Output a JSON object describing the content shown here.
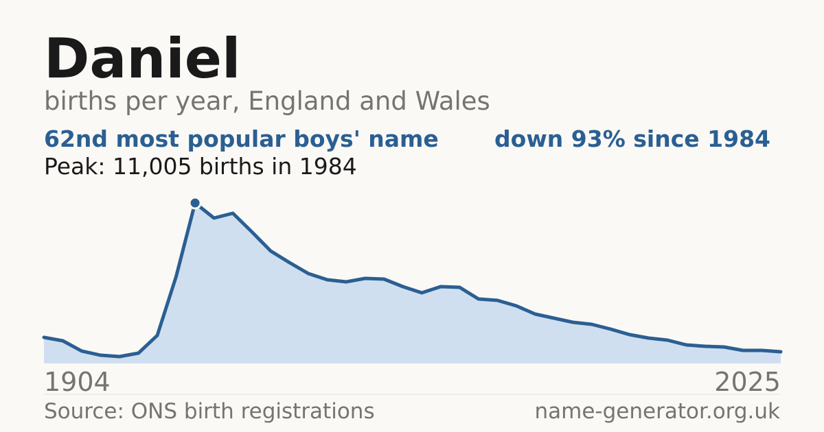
{
  "chart_data": {
    "type": "area",
    "title": "Daniel",
    "subtitle": "births per year, England and Wales",
    "rank_text": "62nd most popular boys' name",
    "change_text": "down 93% since 1984",
    "peak_text": "Peak: 11,005 births in 1984",
    "source": "Source: ONS birth registrations",
    "site": "name-generator.org.uk",
    "categories": [
      "1904",
      null,
      null,
      null,
      null,
      null,
      null,
      null,
      null,
      null,
      null,
      null,
      null,
      null,
      null,
      null,
      null,
      null,
      null,
      null,
      null,
      null,
      null,
      null,
      null,
      null,
      null,
      null,
      null,
      null,
      null,
      null,
      null,
      null,
      null,
      null,
      null,
      null,
      null,
      "2025"
    ],
    "values": [
      1787,
      1552,
      847,
      564,
      470,
      705,
      1928,
      5973,
      11005,
      9970,
      10300,
      9030,
      7713,
      6913,
      6161,
      5738,
      5597,
      5832,
      5785,
      5267,
      4844,
      5267,
      5220,
      4421,
      4327,
      3951,
      3386,
      3104,
      2822,
      2681,
      2352,
      1975,
      1740,
      1599,
      1270,
      1176,
      1129,
      894,
      894,
      800
    ],
    "peak_index": 8,
    "color": "#2b5f93",
    "fill": "#d0dff0",
    "ylim": [
      0,
      11005
    ]
  }
}
